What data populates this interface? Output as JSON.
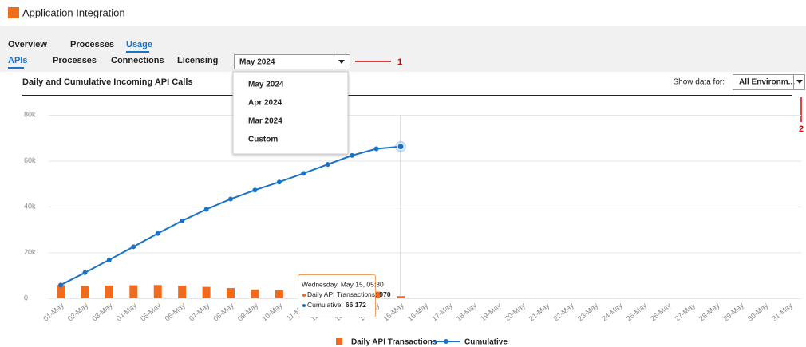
{
  "header": {
    "title": "Application Integration"
  },
  "tabs": [
    "Overview",
    "Processes",
    "Usage"
  ],
  "subtabs": [
    "APIs",
    "Processes",
    "Connections",
    "Licensing"
  ],
  "month_select": {
    "value": "May 2024",
    "options": [
      "May 2024",
      "Apr 2024",
      "Mar 2024",
      "Custom"
    ]
  },
  "annotations": [
    "1",
    "2"
  ],
  "filter": {
    "label": "Show data for:",
    "value": "All Environm..."
  },
  "chart_data": {
    "type": "combo",
    "title": "Daily and Cumulative Incoming API Calls",
    "categories": [
      "01-May",
      "02-May",
      "03-May",
      "04-May",
      "05-May",
      "06-May",
      "07-May",
      "08-May",
      "09-May",
      "10-May",
      "11-May",
      "12-May",
      "13-May",
      "14-May",
      "15-May",
      "16-May",
      "17-May",
      "18-May",
      "19-May",
      "20-May",
      "21-May",
      "22-May",
      "23-May",
      "24-May",
      "25-May",
      "26-May",
      "27-May",
      "28-May",
      "29-May",
      "30-May",
      "31-May"
    ],
    "series": [
      {
        "name": "Daily API Transactions",
        "type": "bar",
        "color": "#f26a1b",
        "values": [
          5800,
          5400,
          5600,
          5700,
          5800,
          5500,
          5000,
          4500,
          3900,
          3500,
          3800,
          3900,
          3900,
          2900,
          970,
          null,
          null,
          null,
          null,
          null,
          null,
          null,
          null,
          null,
          null,
          null,
          null,
          null,
          null,
          null,
          null
        ]
      },
      {
        "name": "Cumulative",
        "type": "line",
        "color": "#1a73c8",
        "values": [
          5800,
          11200,
          16800,
          22500,
          28300,
          33800,
          38800,
          43300,
          47200,
          50700,
          54500,
          58400,
          62300,
          65200,
          66172,
          null,
          null,
          null,
          null,
          null,
          null,
          null,
          null,
          null,
          null,
          null,
          null,
          null,
          null,
          null,
          null
        ]
      }
    ],
    "ylim": [
      0,
      80000
    ],
    "yticks": [
      0,
      {
        "value": 20000,
        "label": "20k"
      },
      {
        "value": 40000,
        "label": "40k"
      },
      {
        "value": 60000,
        "label": "60k"
      },
      {
        "value": 80000,
        "label": "80k"
      }
    ],
    "grid": true,
    "tooltip": {
      "title": "Wednesday, May 15, 05:30",
      "items": [
        {
          "label": "Daily API Transactions:",
          "value": "970"
        },
        {
          "label": "Cumulative:",
          "value": "66 172"
        }
      ]
    }
  }
}
